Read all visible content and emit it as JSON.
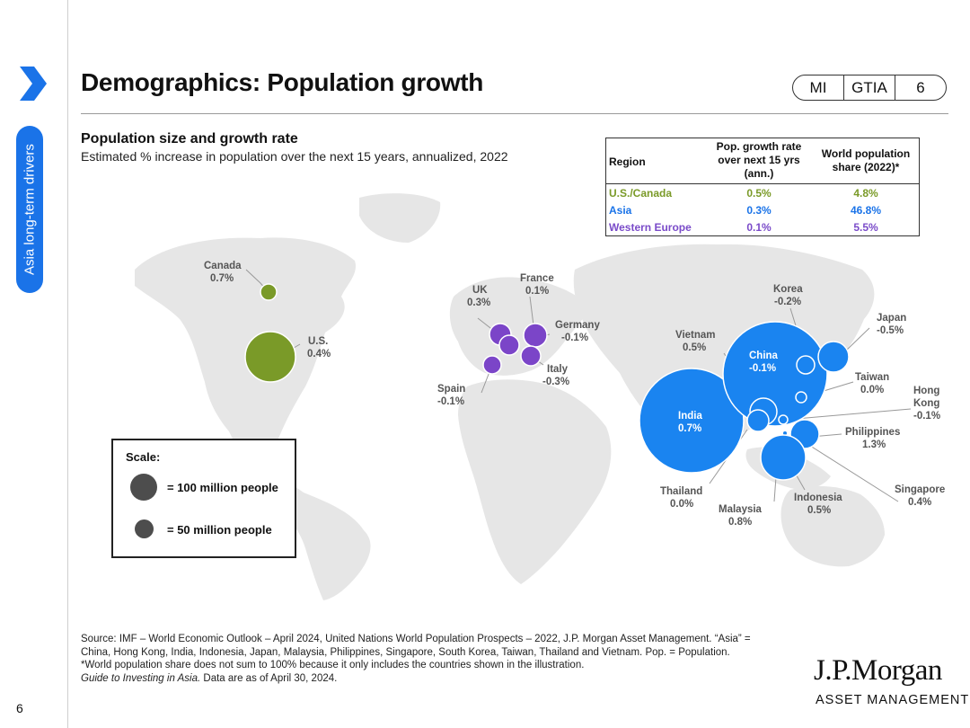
{
  "sidebar": {
    "section_label": "Asia long-term drivers",
    "page_number": "6"
  },
  "header": {
    "title": "Demographics: Population growth",
    "pill": [
      "MI",
      "GTIA",
      "6"
    ]
  },
  "chart": {
    "title": "Population size and growth rate",
    "description": "Estimated % increase in population over the next 15 years, annualized, 2022"
  },
  "table": {
    "headers": [
      "Region",
      "Pop. growth rate over next 15 yrs (ann.)",
      "World population share (2022)*"
    ],
    "rows": [
      {
        "region": "U.S./Canada",
        "growth": "0.5%",
        "share": "4.8%",
        "color": "#7a9a28"
      },
      {
        "region": "Asia",
        "growth": "0.3%",
        "share": "46.8%",
        "color": "#1a73e8"
      },
      {
        "region": "Western Europe",
        "growth": "0.1%",
        "share": "5.5%",
        "color": "#7a4bc9"
      }
    ]
  },
  "colors": {
    "us_canada": "#7a9a28",
    "asia": "#1a84f0",
    "europe": "#7b45c8",
    "scale": "#4d4d4d",
    "accent": "#1a73e8"
  },
  "countries": {
    "canada": {
      "name": "Canada",
      "growth": "0.7%"
    },
    "us": {
      "name": "U.S.",
      "growth": "0.4%"
    },
    "uk": {
      "name": "UK",
      "growth": "0.3%"
    },
    "france": {
      "name": "France",
      "growth": "0.1%"
    },
    "germany": {
      "name": "Germany",
      "growth": "-0.1%"
    },
    "italy": {
      "name": "Italy",
      "growth": "-0.3%"
    },
    "spain": {
      "name": "Spain",
      "growth": "-0.1%"
    },
    "vietnam": {
      "name": "Vietnam",
      "growth": "0.5%"
    },
    "korea": {
      "name": "Korea",
      "growth": "-0.2%"
    },
    "japan": {
      "name": "Japan",
      "growth": "-0.5%"
    },
    "china": {
      "name": "China",
      "growth": "-0.1%"
    },
    "taiwan": {
      "name": "Taiwan",
      "growth": "0.0%"
    },
    "hong_kong": {
      "name_line1": "Hong",
      "name_line2": "Kong",
      "growth": "-0.1%"
    },
    "india": {
      "name": "India",
      "growth": "0.7%"
    },
    "philippines": {
      "name": "Philippines",
      "growth": "1.3%"
    },
    "thailand": {
      "name": "Thailand",
      "growth": "0.0%"
    },
    "malaysia": {
      "name": "Malaysia",
      "growth": "0.8%"
    },
    "indonesia": {
      "name": "Indonesia",
      "growth": "0.5%"
    },
    "singapore": {
      "name": "Singapore",
      "growth": "0.4%"
    }
  },
  "scale_legend": {
    "title": "Scale:",
    "large": "= 100 million people",
    "small": "= 50 million people"
  },
  "source": {
    "line1": "Source: IMF – World Economic Outlook – April 2024, United Nations World Population Prospects – 2022, J.P. Morgan Asset Management. “Asia” =",
    "line2": "China, Hong Kong, India, Indonesia, Japan, Malaysia, Philippines, Singapore, South Korea, Taiwan, Thailand and Vietnam. Pop. = Population.",
    "line3": "*World population share does not sum to 100% because it only includes the countries shown in the illustration.",
    "line4_italic": "Guide to Investing in Asia.",
    "line4_rest": " Data are as of April 30, 2024."
  },
  "logo": {
    "line1": "J.P.Morgan",
    "line2": "ASSET MANAGEMENT"
  }
}
